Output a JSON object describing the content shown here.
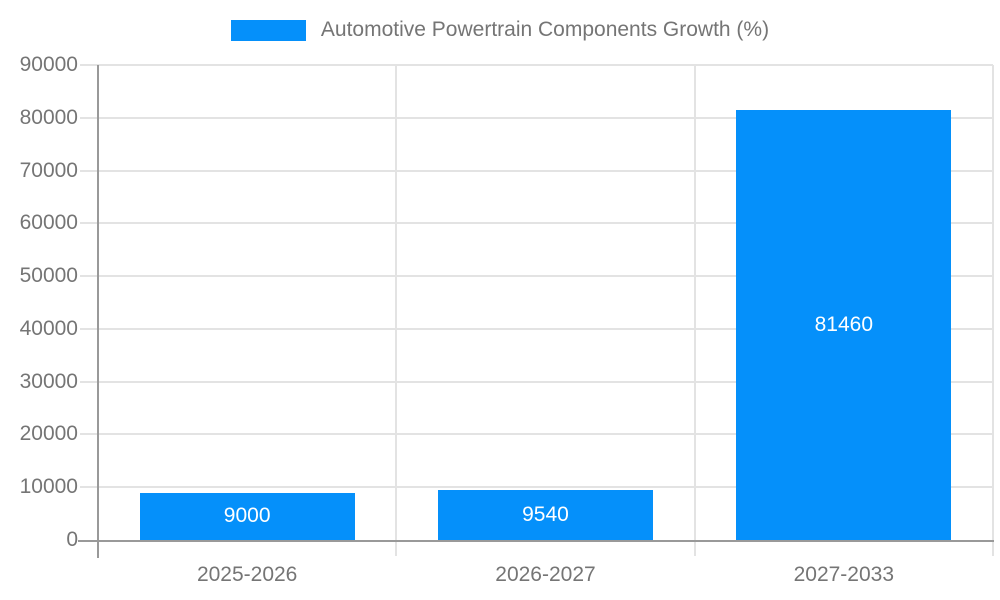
{
  "chart_data": {
    "type": "bar",
    "title": "Automotive Powertrain Components Growth (%)",
    "categories": [
      "2025-2026",
      "2026-2027",
      "2027-2033"
    ],
    "values": [
      9000,
      9540,
      81460
    ],
    "bar_value_labels": [
      "9000",
      "9540",
      "81460"
    ],
    "xlabel": "",
    "ylabel": "",
    "y_axis": {
      "min": 0,
      "max": 90000,
      "tick_step": 10000,
      "tick_labels": [
        "0",
        "10000",
        "20000",
        "30000",
        "40000",
        "50000",
        "60000",
        "70000",
        "80000",
        "90000"
      ]
    },
    "legend": {
      "position": "top-center",
      "entries": [
        {
          "label": "Automotive Powertrain Components Growth (%)",
          "color": "#0590fa"
        }
      ]
    },
    "grid": true
  },
  "colors": {
    "bar": "#0590fa",
    "gridline": "#e3e3e3",
    "axis_line": "#999999",
    "tick_text": "#757575",
    "bar_label_text": "#ffffff",
    "background": "#ffffff"
  }
}
